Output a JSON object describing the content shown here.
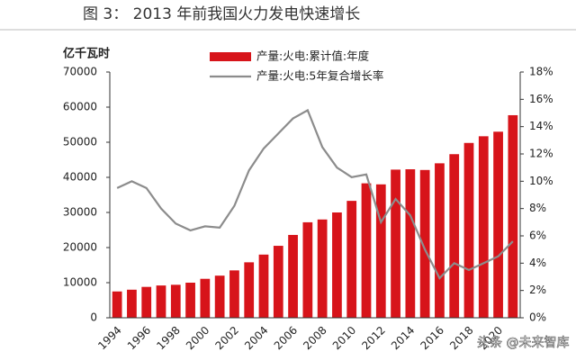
{
  "title": "图 3： 2013 年前我国火力发电快速增长",
  "watermark": "头条 @未来智库",
  "chart_data": {
    "type": "bar-line",
    "y_label": "亿千瓦时",
    "categories": [
      "1994",
      null,
      "1996",
      null,
      "1998",
      null,
      "2000",
      null,
      "2002",
      null,
      "2004",
      null,
      "2006",
      null,
      "2008",
      null,
      "2010",
      null,
      "2012",
      null,
      "2014",
      null,
      "2016",
      null,
      "2018",
      null,
      "2020",
      null
    ],
    "series": [
      {
        "name": "产量:火电:累计值:年度",
        "type": "bar",
        "color": "#d7141a",
        "values": [
          7500,
          8000,
          8800,
          9200,
          9400,
          10000,
          11100,
          12000,
          13500,
          15800,
          18000,
          20500,
          23600,
          27200,
          28000,
          30000,
          33300,
          38300,
          38000,
          42200,
          42300,
          42100,
          44000,
          46600,
          49800,
          51700,
          53000,
          57700
        ]
      },
      {
        "name": "产量:火电:5年复合增长率",
        "type": "line",
        "axis": "y2",
        "color": "#8c8c8c",
        "values": [
          9.5,
          10.0,
          9.5,
          8.0,
          6.9,
          6.4,
          6.7,
          6.6,
          8.2,
          10.8,
          12.4,
          13.5,
          14.6,
          15.2,
          12.5,
          11.0,
          10.3,
          10.5,
          7.0,
          8.7,
          7.5,
          5.0,
          2.9,
          4.0,
          3.5,
          4.0,
          4.5,
          5.6
        ]
      }
    ],
    "ylim": [
      0,
      70000
    ],
    "yticks": [
      0,
      10000,
      20000,
      30000,
      40000,
      50000,
      60000,
      70000
    ],
    "y2lim": [
      0,
      18
    ],
    "y2ticks": [
      {
        "value": 0,
        "label": "0%"
      },
      {
        "value": 2,
        "label": "2%"
      },
      {
        "value": 4,
        "label": "4%"
      },
      {
        "value": 6,
        "label": "6%"
      },
      {
        "value": 8,
        "label": "8%"
      },
      {
        "value": 10,
        "label": "10%"
      },
      {
        "value": 12,
        "label": "12%"
      },
      {
        "value": 14,
        "label": "14%"
      },
      {
        "value": 16,
        "label": "16%"
      },
      {
        "value": 18,
        "label": "18%"
      }
    ]
  }
}
